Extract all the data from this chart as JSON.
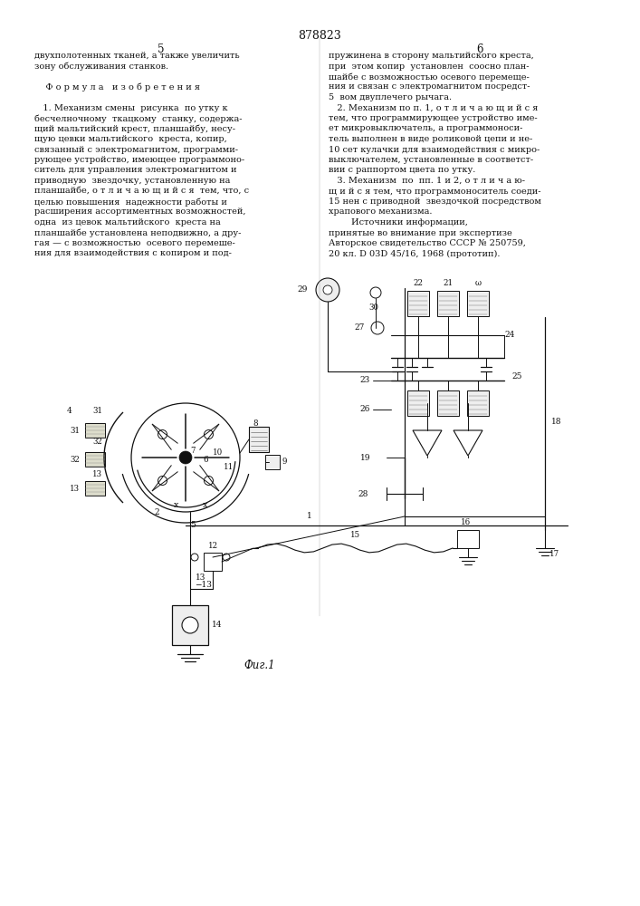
{
  "patent_number": "878823",
  "bg_color": "#ffffff",
  "text_color": "#1a1a1a",
  "font_size_body": 7.0,
  "left_col_lines": [
    "двухполотенных тканей, а также увеличить",
    "зону обслуживания станков.",
    "",
    "    Ф о р м у л а   и з о б р е т е н и я",
    "",
    "   1. Механизм смены  рисунка  по утку к",
    "бесчелночному  ткацкому  станку, содержа-",
    "щий мальтийский крест, планшайбу, несу-",
    "щую цевки мальтийского  креста, копир,",
    "связанный с электромагнитом, программи-",
    "рующее устройство, имеющее программоно-",
    "ситель для управления электромагнитом и",
    "приводную  звездочку, установленную на",
    "планшайбе, о т л и ч а ю щ и й с я  тем, что, с",
    "целью повышения  надежности работы и",
    "расширения ассортиментных возможностей,",
    "одна  из цевок мальтийского  креста на",
    "планшайбе установлена неподвижно, а дру-",
    "гая — с возможностью  осевого перемеше-",
    "ния для взаимодействия с копиром и под-"
  ],
  "right_col_lines": [
    "пружинена в сторону мальтийского креста,",
    "при  этом копир  установлен  соосно план-",
    "шайбе с возможностью осевого перемеще-",
    "ния и связан с электромагнитом посредст-",
    "5  вом двуплечего рычага.",
    "   2. Механизм по п. 1, о т л и ч а ю щ и й с я",
    "тем, что программирующее устройство име-",
    "ет микровыключатель, а программоноси-",
    "тель выполнен в виде роликовой цепи и не-",
    "10 сет кулачки для взаимодействия с микро-",
    "выключателем, установленные в соответст-",
    "вии с раппортом цвета по утку.",
    "   3. Механизм  по  пп. 1 и 2, о т л и ч а ю-",
    "щ и й с я тем, что программоноситель соеди-",
    "15 нен с приводной  звездочкой посредством",
    "храпового механизма.",
    "        Источники информации,",
    "принятые во внимание при экспертизе",
    "Авторское свидетельство СССР № 250759,",
    "20 кл. D 03D 45/16, 1968 (прототип)."
  ],
  "figure_caption": "Фиг.1"
}
